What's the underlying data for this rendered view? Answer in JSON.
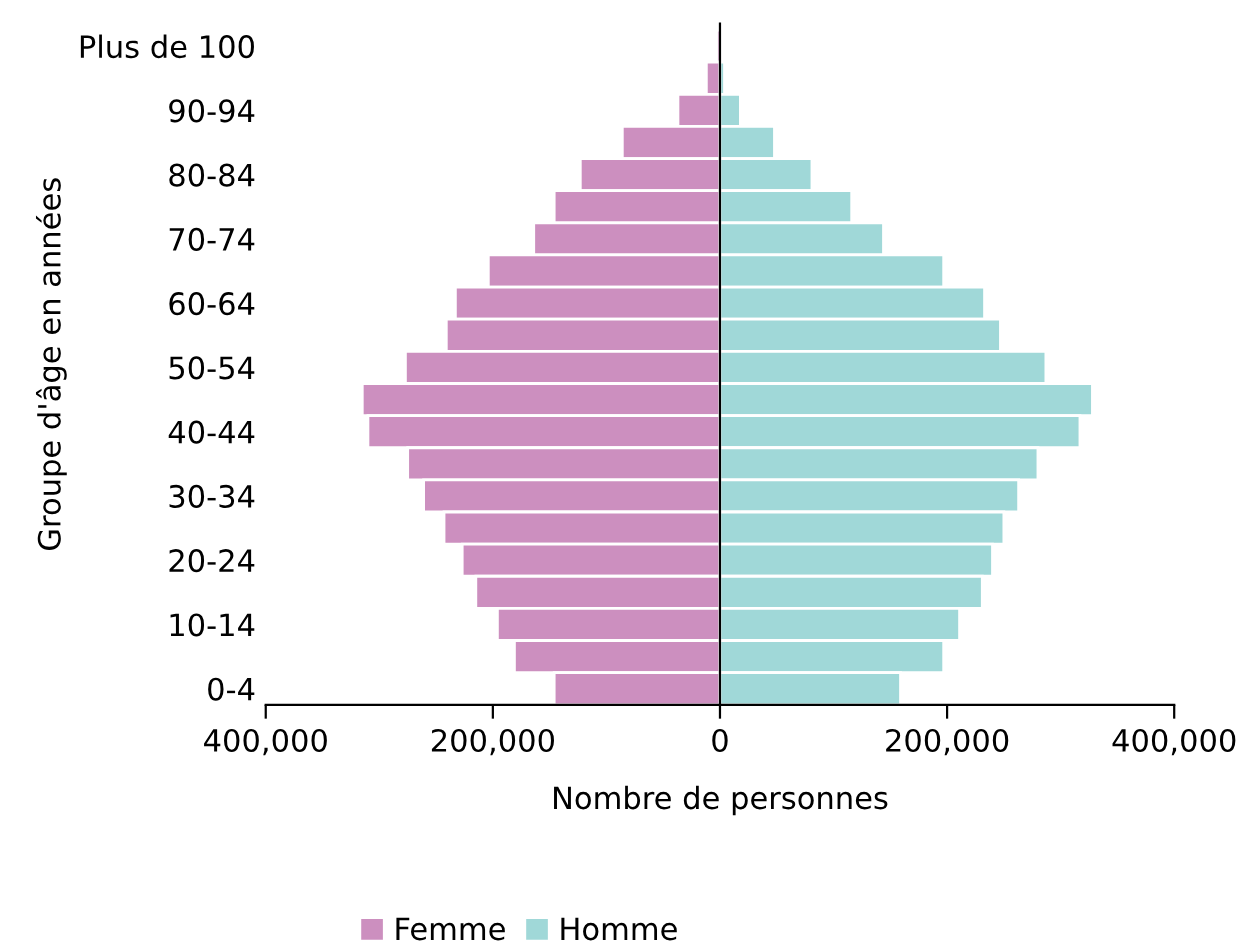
{
  "chart_data": {
    "type": "bar",
    "orientation": "horizontal",
    "stacked": true,
    "xlabel": "Nombre de personnes",
    "ylabel": "Groupe d'âge en années",
    "categories": [
      "Plus de 100",
      null,
      "90-94",
      null,
      "80-84",
      null,
      "70-74",
      null,
      "60-64",
      null,
      "50-54",
      null,
      "40-44",
      null,
      "30-34",
      null,
      "20-24",
      null,
      "10-14",
      null,
      "0-4"
    ],
    "series": [
      {
        "name": "Femme",
        "color": "#cc8fbf",
        "values": [
          -3000,
          -12000,
          -37000,
          -86000,
          -123000,
          -146000,
          -164000,
          -204000,
          -233000,
          -241000,
          -277000,
          -315000,
          -310000,
          -275000,
          -261000,
          -243000,
          -227000,
          -215000,
          -196000,
          -181000,
          -146000
        ]
      },
      {
        "name": "Homme",
        "color": "#a0d8d8",
        "values": [
          null,
          4000,
          18000,
          48000,
          81000,
          116000,
          144000,
          197000,
          233000,
          247000,
          287000,
          328000,
          317000,
          280000,
          263000,
          250000,
          240000,
          231000,
          211000,
          197000,
          159000
        ]
      }
    ],
    "xlim": [
      -400000,
      400000
    ],
    "xticks": [
      {
        "value": -400000,
        "label": "400,000"
      },
      {
        "value": -200000,
        "label": "200,000"
      },
      0,
      {
        "value": 200000,
        "label": "200,000"
      },
      {
        "value": 400000,
        "label": "400,000"
      }
    ],
    "legend": "bottom"
  }
}
